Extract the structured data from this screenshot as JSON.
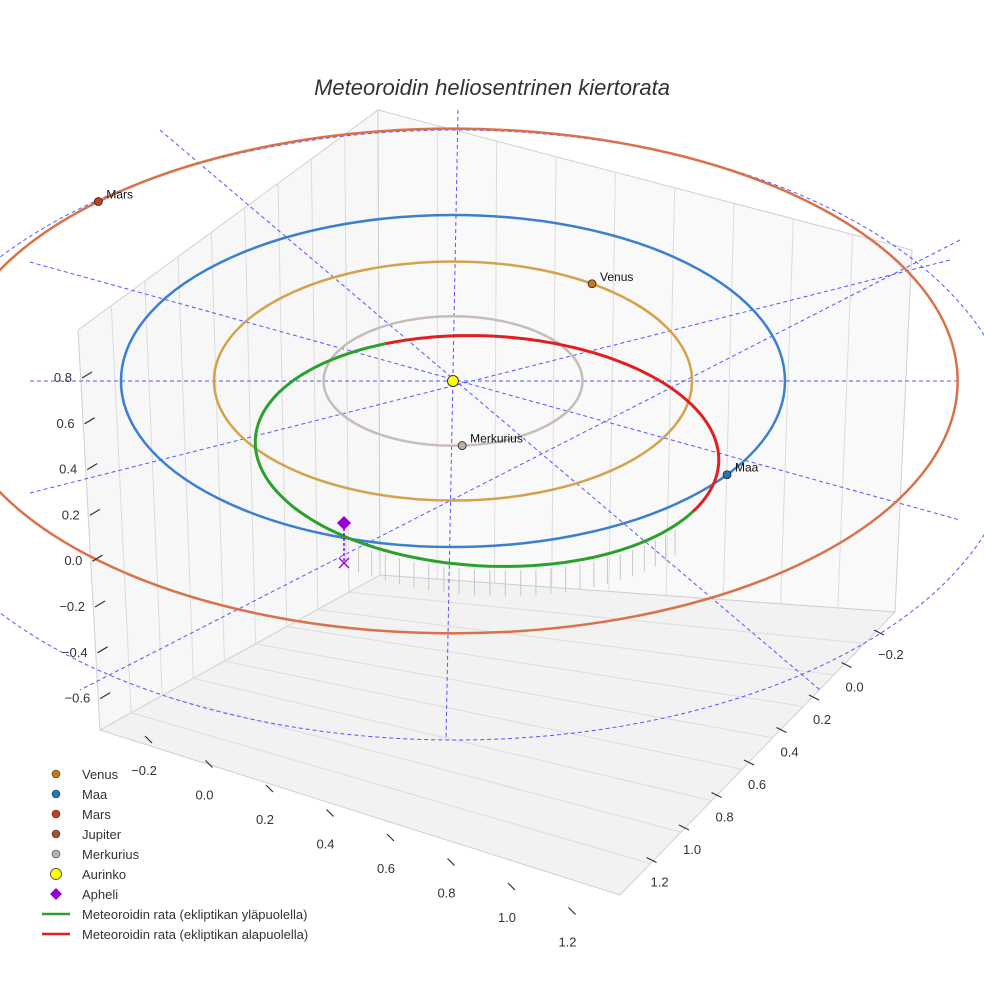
{
  "chart_data": {
    "type": "3d-line",
    "title": "Meteoroidin heliosentrinen kiertorata",
    "z_ticks": [
      "0.8",
      "0.6",
      "0.4",
      "0.2",
      "0.0",
      "−0.2",
      "−0.4",
      "−0.6"
    ],
    "x_ticks": [
      "−0.2",
      "0.0",
      "0.2",
      "0.4",
      "0.6",
      "0.8",
      "1.0",
      "1.2"
    ],
    "y_ticks": [
      "−0.2",
      "0.0",
      "0.2",
      "0.4",
      "0.6",
      "0.8",
      "1.0",
      "1.2"
    ],
    "planets": [
      {
        "name": "Venus",
        "label": "Venus",
        "orbit_radius_au": 0.72,
        "orbit_color": "#d4a24c",
        "marker_color": "#c07a1a"
      },
      {
        "name": "Maa",
        "label": "Maa",
        "orbit_radius_au": 1.0,
        "orbit_color": "#3a7fd0",
        "marker_color": "#1f77b4"
      },
      {
        "name": "Mars",
        "label": "Mars",
        "orbit_radius_au": 1.52,
        "orbit_color": "#d9714a",
        "marker_color": "#c0411c"
      },
      {
        "name": "Merkurius",
        "label": "Merkurius",
        "orbit_radius_au": 0.39,
        "orbit_color": "#c8bcb8",
        "marker_color": "#bbb0ac"
      }
    ],
    "series": [
      {
        "name": "Meteoroidin rata (ekliptikan yläpuolella)",
        "color": "#2ca02c"
      },
      {
        "name": "Meteoroidin rata (ekliptikan alapuolella)",
        "color": "#e02020"
      }
    ],
    "sun": {
      "name": "Aurinko",
      "color": "#ffff00"
    },
    "aphelion": {
      "name": "Apheli",
      "color": "#9400d3"
    },
    "legend": [
      {
        "label": "Venus",
        "kind": "dot",
        "color": "#c07a1a"
      },
      {
        "label": "Maa",
        "kind": "dot",
        "color": "#1f77b4"
      },
      {
        "label": "Mars",
        "kind": "dot",
        "color": "#c0411c"
      },
      {
        "label": "Jupiter",
        "kind": "dot",
        "color": "#a0522d"
      },
      {
        "label": "Merkurius",
        "kind": "dot",
        "color": "#bbb0ac"
      },
      {
        "label": "Aurinko",
        "kind": "sun",
        "color": "#ffff00"
      },
      {
        "label": "Apheli",
        "kind": "diamond",
        "color": "#9400d3"
      },
      {
        "label": "Meteoroidin rata (ekliptikan yläpuolella)",
        "kind": "line",
        "color": "#2ca02c"
      },
      {
        "label": "Meteoroidin rata (ekliptikan alapuolella)",
        "kind": "line",
        "color": "#e02020"
      }
    ],
    "legend_position": "lower-left"
  }
}
